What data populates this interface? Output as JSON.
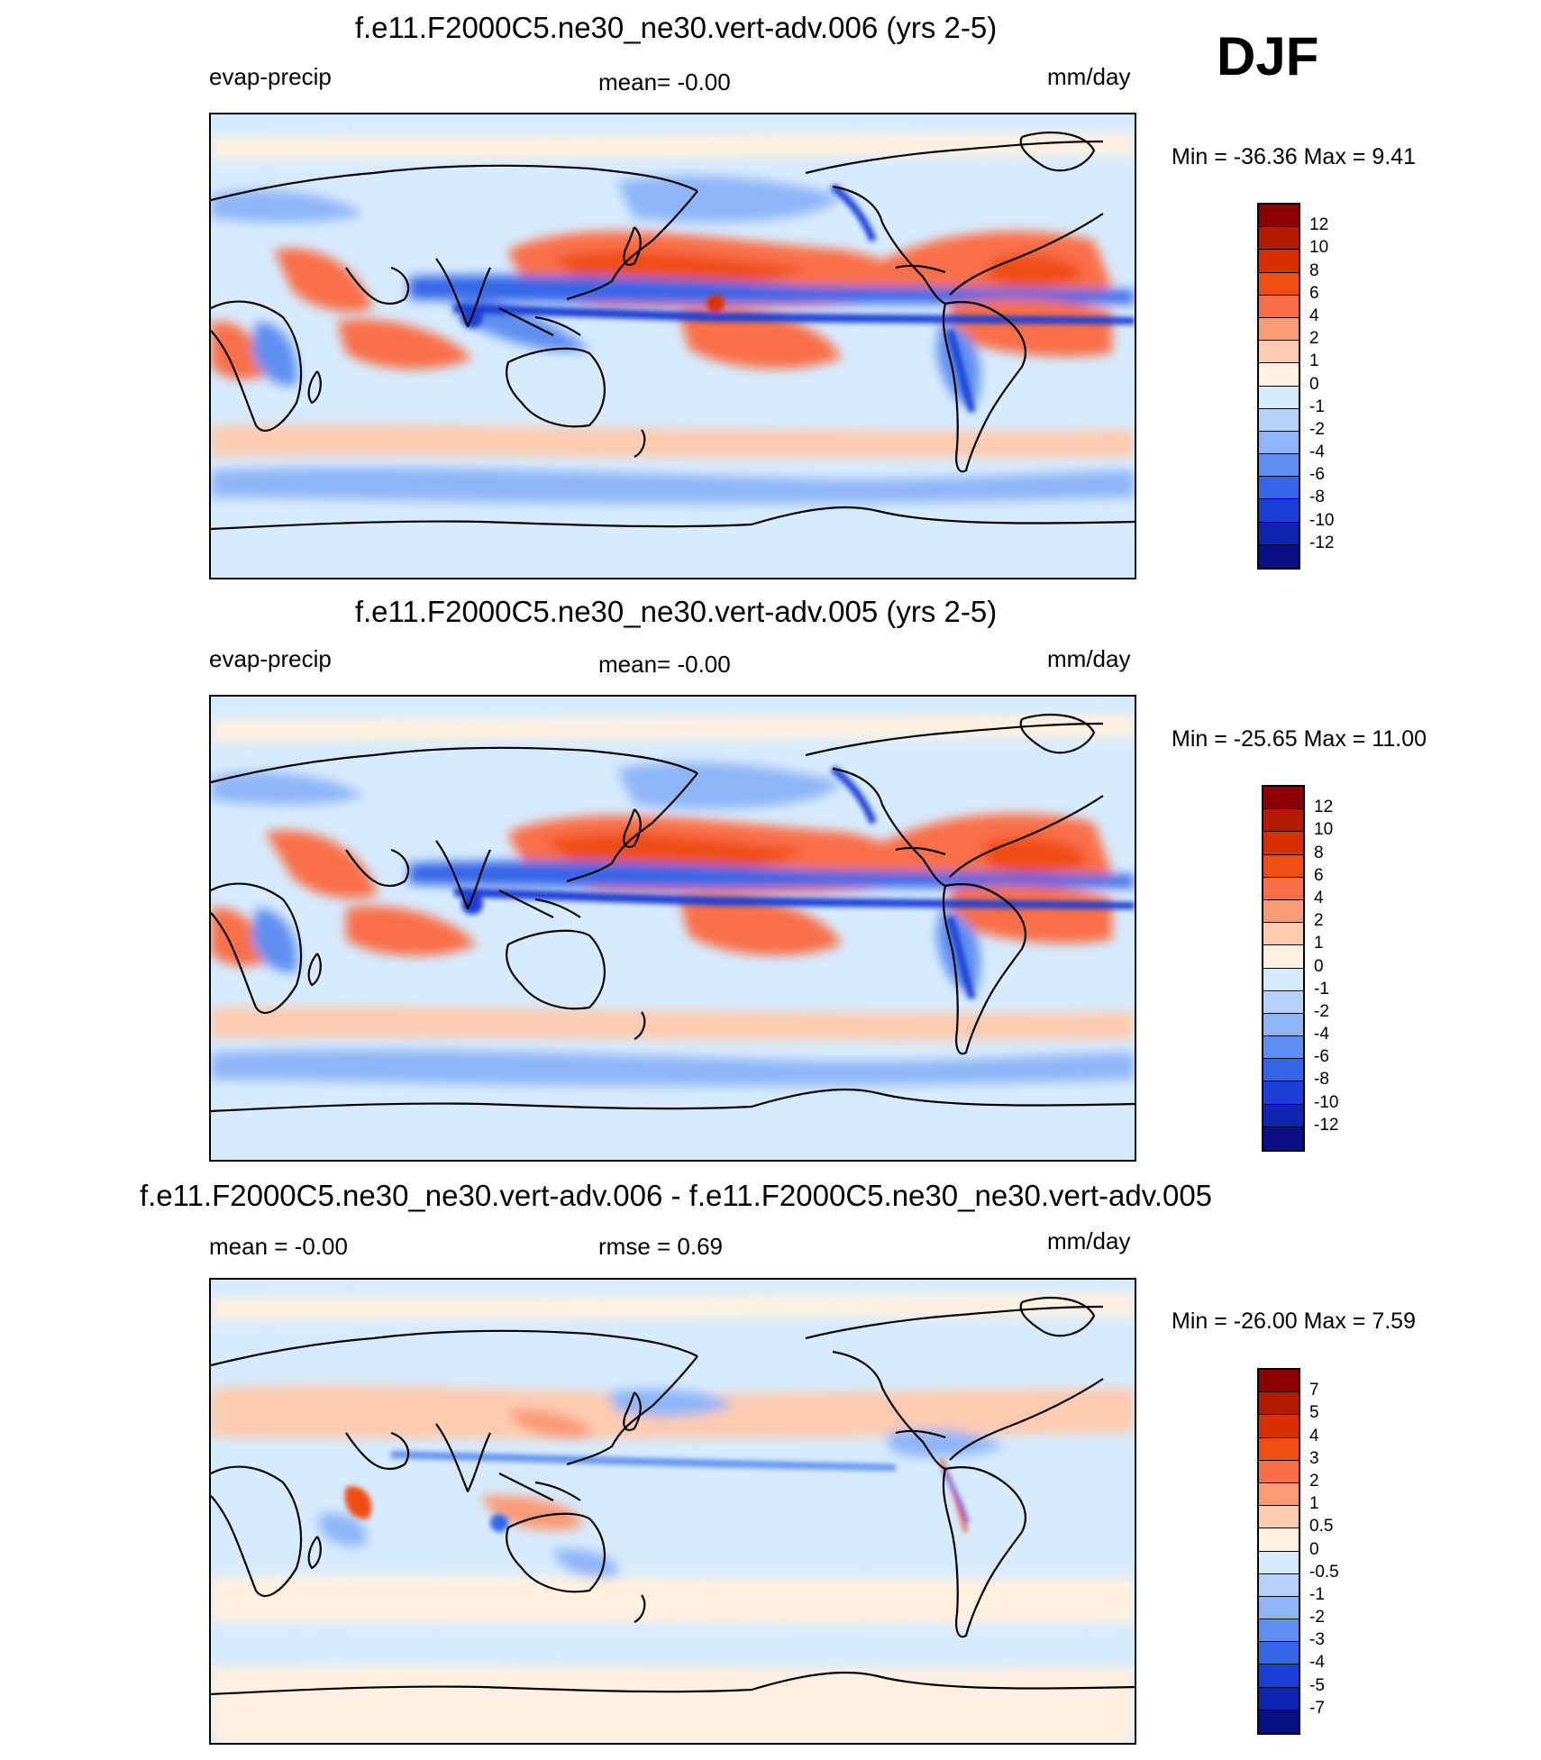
{
  "season_label": "DJF",
  "panels": [
    {
      "title": "f.e11.F2000C5.ne30_ne30.vert-adv.006 (yrs 2-5)",
      "left_label": "evap-precip",
      "center_label": "mean=  -0.00",
      "units": "mm/day",
      "minmax": "Min = -36.36 Max =   9.41",
      "colorbar": {
        "labels": [
          "12",
          "10",
          "8",
          "6",
          "4",
          "2",
          "1",
          "0",
          "-1",
          "-2",
          "-4",
          "-6",
          "-8",
          "-10",
          "-12"
        ],
        "colors": [
          "#8b0000",
          "#b31b00",
          "#d93000",
          "#f04e12",
          "#f97048",
          "#fb9a76",
          "#fdcbb0",
          "#fff0e0",
          "#d6ebfd",
          "#b5d2fb",
          "#8fb5f7",
          "#5f8ff0",
          "#3566e8",
          "#1a3fd6",
          "#0f25b0",
          "#0a0f85"
        ]
      }
    },
    {
      "title": "f.e11.F2000C5.ne30_ne30.vert-adv.005 (yrs 2-5)",
      "left_label": "evap-precip",
      "center_label": "mean=  -0.00",
      "units": "mm/day",
      "minmax": "Min = -25.65 Max =  11.00",
      "colorbar": {
        "labels": [
          "12",
          "10",
          "8",
          "6",
          "4",
          "2",
          "1",
          "0",
          "-1",
          "-2",
          "-4",
          "-6",
          "-8",
          "-10",
          "-12"
        ],
        "colors": [
          "#8b0000",
          "#b31b00",
          "#d93000",
          "#f04e12",
          "#f97048",
          "#fb9a76",
          "#fdcbb0",
          "#fff0e0",
          "#d6ebfd",
          "#b5d2fb",
          "#8fb5f7",
          "#5f8ff0",
          "#3566e8",
          "#1a3fd6",
          "#0f25b0",
          "#0a0f85"
        ]
      }
    },
    {
      "title": "f.e11.F2000C5.ne30_ne30.vert-adv.006 - f.e11.F2000C5.ne30_ne30.vert-adv.005",
      "left_label": "mean =  -0.00",
      "center_label": "rmse =   0.69",
      "units": "mm/day",
      "minmax": "Min = -26.00 Max =   7.59",
      "colorbar": {
        "labels": [
          "7",
          "5",
          "4",
          "3",
          "2",
          "1",
          "0.5",
          "0",
          "-0.5",
          "-1",
          "-2",
          "-3",
          "-4",
          "-5",
          "-7"
        ],
        "colors": [
          "#8b0000",
          "#b31b00",
          "#d93000",
          "#f04e12",
          "#f97048",
          "#fb9a76",
          "#fdcbb0",
          "#fff0e0",
          "#d6ebfd",
          "#b5d2fb",
          "#8fb5f7",
          "#5f8ff0",
          "#3566e8",
          "#1a3fd6",
          "#0f25b0",
          "#0a0f85"
        ]
      }
    }
  ]
}
